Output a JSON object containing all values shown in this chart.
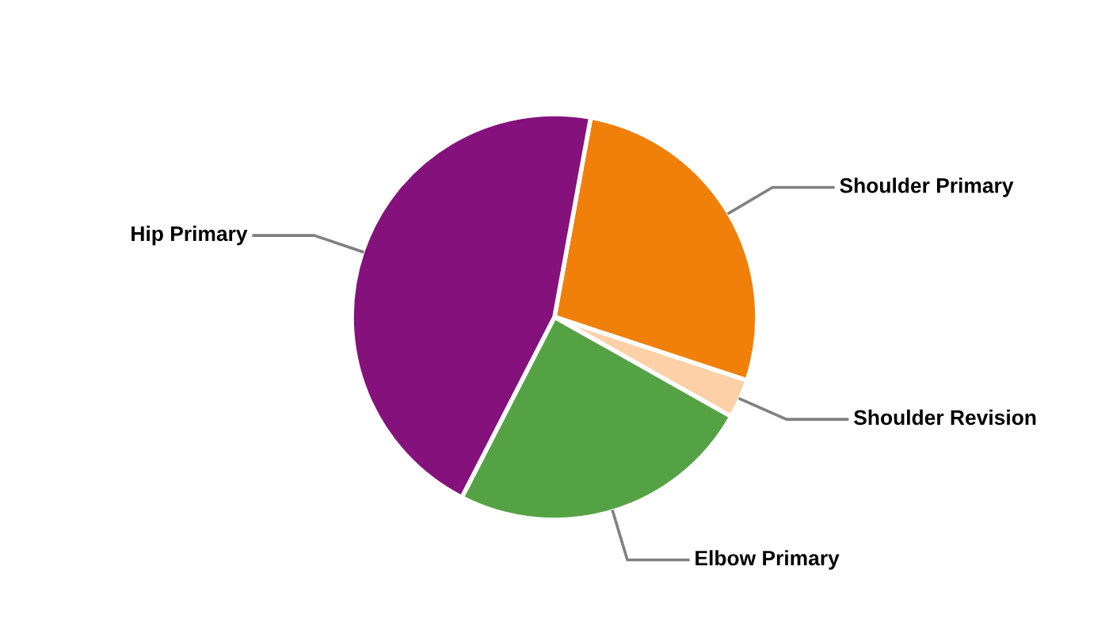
{
  "chart_data": {
    "type": "pie",
    "categories": [
      "Shoulder Primary",
      "Shoulder Revision",
      "Elbow Primary",
      "Hip Primary"
    ],
    "values": [
      27.2,
      3.1,
      24.4,
      45.3
    ],
    "colors": [
      "#f0800a",
      "#fdd0a8",
      "#55a245",
      "#85117c"
    ]
  }
}
